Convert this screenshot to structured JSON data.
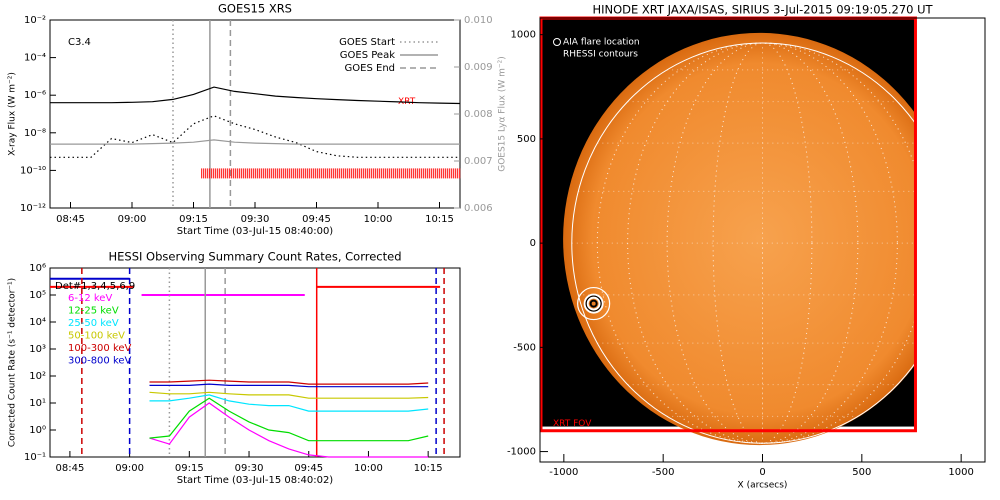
{
  "chart_data": [
    {
      "type": "line",
      "title": "GOES15 XRS",
      "xlabel": "Start Time (03-Jul-15 08:40:00)",
      "ylabel": "X-ray Flux (W m⁻²)",
      "y2label": "GOES15 Lyα Flux (W m⁻²)",
      "annotation": "C3.4",
      "log_y": true,
      "xlim": [
        "08:40",
        "10:20"
      ],
      "xticks": [
        "08:45",
        "09:00",
        "09:15",
        "09:30",
        "09:45",
        "10:00",
        "10:15"
      ],
      "ylim": [
        1e-12,
        0.01
      ],
      "yticks": [
        {
          "value": 1e-12,
          "label": "10⁻¹²"
        },
        {
          "value": 1e-10,
          "label": "10⁻¹⁰"
        },
        {
          "value": 1e-08,
          "label": "10⁻⁸"
        },
        {
          "value": 1e-06,
          "label": "10⁻⁶"
        },
        {
          "value": 0.0001,
          "label": "10⁻⁴"
        },
        {
          "value": 0.01,
          "label": "10⁻²"
        }
      ],
      "y2lim": [
        0.006,
        0.01
      ],
      "y2ticks": [
        0.006,
        0.007,
        0.008,
        0.009,
        {
          "value": 0.01,
          "label": "0.010"
        }
      ],
      "x": [
        "08:40",
        "08:45",
        "08:50",
        "08:55",
        "09:00",
        "09:05",
        "09:10",
        "09:15",
        "09:20",
        "09:25",
        "09:30",
        "09:35",
        "09:40",
        "09:45",
        "09:50",
        "09:55",
        "10:00",
        "10:05",
        "10:10",
        "10:15",
        "10:20"
      ],
      "series": [
        {
          "color": "#000000",
          "style": "solid",
          "values": [
            4e-07,
            4e-07,
            4e-07,
            4e-07,
            4.2e-07,
            4.5e-07,
            6e-07,
            1.1e-06,
            2.7e-06,
            1.6e-06,
            1.2e-06,
            9e-07,
            7.5e-07,
            6.5e-07,
            5.8e-07,
            5.2e-07,
            4.8e-07,
            4.4e-07,
            4e-07,
            3.8e-07,
            3.6e-07
          ]
        },
        {
          "color": "#000000",
          "style": "dotted",
          "values": [
            5e-10,
            5e-10,
            5e-10,
            5e-09,
            3e-09,
            8e-09,
            3e-09,
            3e-08,
            8e-08,
            3e-08,
            1.5e-08,
            6e-09,
            3e-09,
            1e-09,
            6e-10,
            5e-10,
            5e-10,
            5e-10,
            5e-10,
            5e-10,
            5e-10
          ]
        },
        {
          "color": "#999999",
          "style": "solid",
          "axis": "y2",
          "values": [
            0.00736,
            0.00736,
            0.00736,
            0.00736,
            0.00736,
            0.00737,
            0.00738,
            0.0074,
            0.00745,
            0.0074,
            0.00738,
            0.00737,
            0.00736,
            0.00736,
            0.00736,
            0.00736,
            0.00736,
            0.00736,
            0.00736,
            0.00736,
            0.00736
          ]
        }
      ],
      "markers": [
        {
          "name": "GOES Start",
          "x": "09:10",
          "color": "#999999",
          "style": "dotted"
        },
        {
          "name": "GOES Peak",
          "x": "09:19",
          "color": "#999999",
          "style": "solid"
        },
        {
          "name": "GOES End",
          "x": "09:24",
          "color": "#999999",
          "style": "dashed"
        }
      ],
      "xrt_label": "XRT",
      "xrt_color": "#ff0000",
      "xrt_span": [
        "09:17",
        "10:20"
      ]
    },
    {
      "type": "line",
      "title": "HESSI Observing Summary Count Rates, Corrected",
      "xlabel": "Start Time (03-Jul-15 08:40:02)",
      "ylabel": "Corrected Count Rate (s⁻¹ detector⁻¹)",
      "legend_title": "Det#1,3,4,5,6,9",
      "log_y": true,
      "xlim": [
        "08:40",
        "10:23"
      ],
      "xticks": [
        "08:45",
        "09:00",
        "09:15",
        "09:30",
        "09:45",
        "10:00",
        "10:15"
      ],
      "ylim": [
        0.1,
        1000000
      ],
      "yticks": [
        {
          "value": 0.1,
          "label": "10⁻¹"
        },
        {
          "value": 1,
          "label": "10⁰"
        },
        {
          "value": 10,
          "label": "10¹"
        },
        {
          "value": 100,
          "label": "10²"
        },
        {
          "value": 1000,
          "label": "10³"
        },
        {
          "value": 10000,
          "label": "10⁴"
        },
        {
          "value": 100000,
          "label": "10⁵"
        },
        {
          "value": 1000000,
          "label": "10⁶"
        }
      ],
      "x": [
        "09:05",
        "09:10",
        "09:15",
        "09:20",
        "09:25",
        "09:30",
        "09:35",
        "09:40",
        "09:45",
        "09:50",
        "09:55",
        "10:00",
        "10:05",
        "10:10",
        "10:15"
      ],
      "series": [
        {
          "name": "6-12 keV",
          "color": "#ff00ff",
          "values": [
            0.5,
            0.3,
            3,
            10,
            3,
            1,
            0.4,
            0.2,
            0.12,
            0.1,
            0.1,
            0.1,
            0.1,
            0.1,
            0.1
          ]
        },
        {
          "name": "12-25 keV",
          "color": "#00dd00",
          "values": [
            0.5,
            0.6,
            5,
            15,
            5,
            2,
            1,
            0.8,
            0.4,
            0.4,
            0.4,
            0.4,
            0.4,
            0.4,
            0.6
          ]
        },
        {
          "name": "25-50 keV",
          "color": "#00e5ff",
          "values": [
            12,
            12,
            15,
            20,
            12,
            9,
            8,
            8,
            5,
            5,
            5,
            5,
            5,
            5,
            6
          ]
        },
        {
          "name": "50-100 keV",
          "color": "#c8c800",
          "values": [
            25,
            22,
            22,
            25,
            22,
            20,
            20,
            20,
            15,
            15,
            15,
            15,
            15,
            15,
            16
          ]
        },
        {
          "name": "100-300 keV",
          "color": "#cc0000",
          "values": [
            60,
            60,
            65,
            70,
            65,
            60,
            60,
            60,
            50,
            50,
            50,
            50,
            50,
            50,
            55
          ]
        },
        {
          "name": "300-800 keV",
          "color": "#0000cc",
          "values": [
            45,
            45,
            45,
            50,
            45,
            45,
            45,
            45,
            40,
            40,
            40,
            40,
            40,
            40,
            40
          ]
        }
      ],
      "markers": [
        {
          "x": "08:48",
          "color": "#cc0000",
          "style": "dashed"
        },
        {
          "x": "09:00",
          "color": "#0000cc",
          "style": "dashed"
        },
        {
          "x": "09:10",
          "color": "#999999",
          "style": "dotted"
        },
        {
          "x": "09:19",
          "color": "#999999",
          "style": "solid"
        },
        {
          "x": "09:24",
          "color": "#999999",
          "style": "dashed"
        },
        {
          "x": "09:47",
          "color": "#ff0000",
          "style": "solid"
        },
        {
          "x": "10:17",
          "color": "#0000cc",
          "style": "dashed"
        },
        {
          "x": "10:19",
          "color": "#cc0000",
          "style": "dashed"
        }
      ],
      "levels": [
        {
          "x": [
            "08:40",
            "09:00"
          ],
          "y": 400000,
          "color": "#0000cc"
        },
        {
          "x": [
            "08:40",
            "09:01"
          ],
          "y": 200000,
          "color": "#ff0000"
        },
        {
          "x": [
            "09:03",
            "09:44"
          ],
          "y": 100000,
          "color": "#ff00ff"
        },
        {
          "x": [
            "09:47",
            "10:18"
          ],
          "y": 200000,
          "color": "#ff0000"
        }
      ]
    },
    {
      "type": "image",
      "title": "HINODE XRT JAXA/ISAS, SIRIUS  3-Jul-2015 09:19:05.270 UT",
      "xlabel": "X (arcsecs)",
      "xlim": [
        -1120,
        1120
      ],
      "ylim": [
        -1050,
        1080
      ],
      "xticks": [
        -1000,
        -500,
        0,
        500,
        1000
      ],
      "yticks": [
        -1000,
        -500,
        0,
        500,
        1000
      ],
      "legend": [
        "AIA flare location",
        "RHESSI contours"
      ],
      "flare_location": [
        -850,
        -290
      ],
      "fov": {
        "label": "XRT FOV",
        "color": "#ff0000",
        "x": [
          -1115,
          770
        ],
        "y": [
          -900,
          1080
        ]
      }
    }
  ]
}
